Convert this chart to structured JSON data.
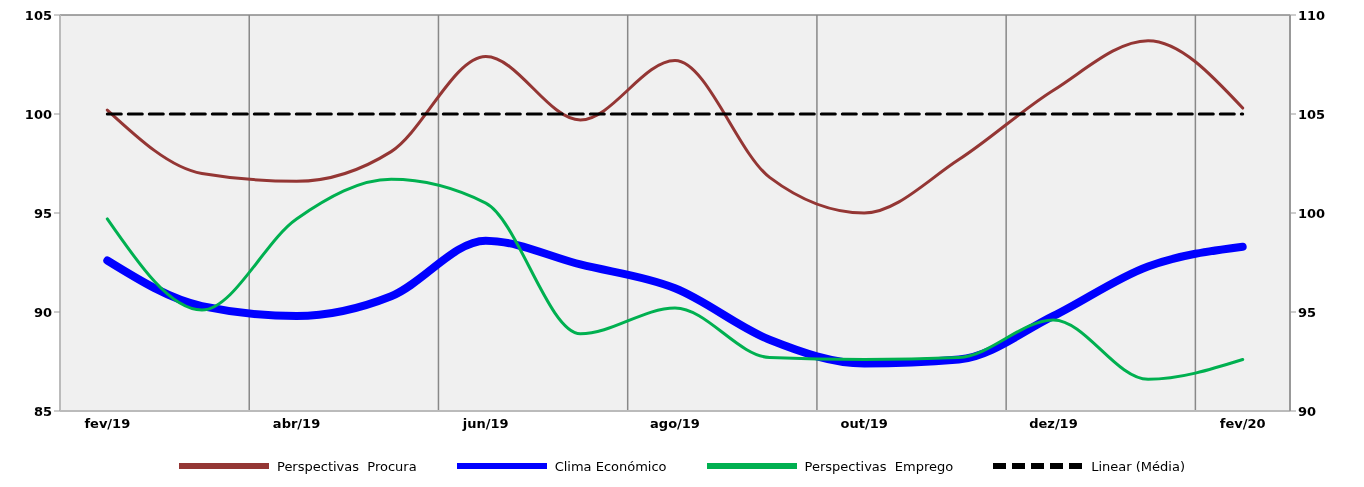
{
  "chart_data": {
    "type": "line",
    "categories": [
      "fev/19",
      null,
      "abr/19",
      null,
      "jun/19",
      null,
      "ago/19",
      null,
      "out/19",
      null,
      "dez/19",
      null,
      "fev/20"
    ],
    "series": [
      {
        "name": "Perspectivas  Procura",
        "color": "#943634",
        "values": [
          100.2,
          97.0,
          96.6,
          98.1,
          102.9,
          99.7,
          102.7,
          96.8,
          95.0,
          97.7,
          101.2,
          103.7,
          100.3
        ]
      },
      {
        "name": "Clima Económico",
        "color": "#0000ff",
        "values": [
          92.6,
          90.3,
          89.8,
          90.8,
          93.6,
          92.4,
          91.2,
          88.6,
          87.4,
          87.6,
          89.8,
          92.3,
          93.3
        ]
      },
      {
        "name": "Perspectivas  Emprego",
        "color": "#00b050",
        "values": [
          94.7,
          90.1,
          94.7,
          96.7,
          95.5,
          88.9,
          90.2,
          87.7,
          87.6,
          87.7,
          89.6,
          86.6,
          87.6
        ]
      },
      {
        "name": "Linear (Média)",
        "color": "#000000",
        "line_style": "dashed",
        "values": [
          100,
          100,
          100,
          100,
          100,
          100,
          100,
          100,
          100,
          100,
          100,
          100,
          100
        ]
      }
    ],
    "ylim": [
      85,
      105
    ],
    "yticks": [
      85,
      90,
      95,
      100,
      105
    ],
    "y2lim": [
      90,
      110
    ],
    "y2ticks": [
      90,
      95,
      100,
      105,
      110
    ],
    "grid": true,
    "legend": "bottom",
    "marker": "none",
    "line_style": "solid"
  }
}
